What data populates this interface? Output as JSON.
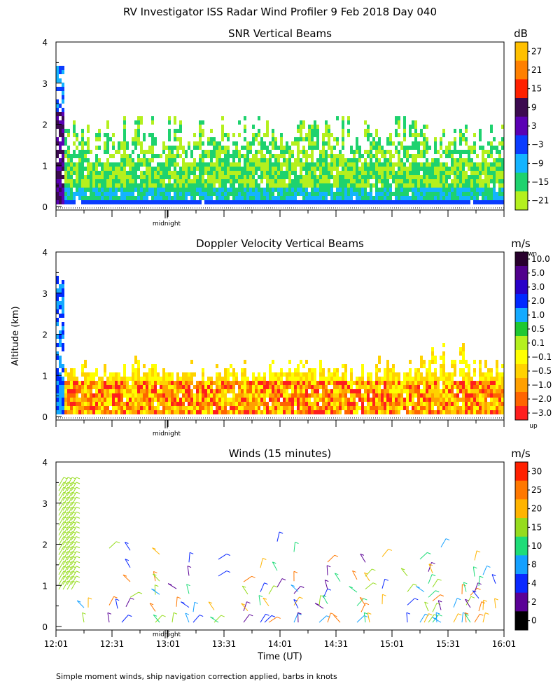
{
  "figure": {
    "title": "RV Investigator ISS Radar Wind Profiler   9 Feb 2018 Day 040",
    "ylabel": "Altitude (km)",
    "xlabel": "Time (UT)",
    "footer": "Simple moment winds, ship navigation correction applied, barbs in knots"
  },
  "chart_data": [
    {
      "type": "heatmap",
      "title": "SNR Vertical Beams",
      "colorbar_unit": "dB",
      "colorbar": {
        "ticks": [
          "27",
          "21",
          "15",
          "9",
          "3",
          "−3",
          "−9",
          "−15",
          "−21"
        ],
        "colors": [
          "#ffc000",
          "#ff8000",
          "#ff2000",
          "#3c0a50",
          "#5a00b4",
          "#0a3cff",
          "#14b4ff",
          "#1ed26e",
          "#b4f01e"
        ]
      },
      "y_ticks": [
        "0",
        "1",
        "2",
        "3",
        "4"
      ],
      "ylim": [
        0,
        4
      ],
      "xlim": [
        "12:01",
        "16:01"
      ],
      "midnight_label": "midnight",
      "grid": false
    },
    {
      "type": "heatmap",
      "title": "Doppler Velocity Vertical Beams",
      "colorbar_unit": "m/s",
      "colorbar_top_label": "down",
      "colorbar_bottom_label": "up",
      "colorbar": {
        "ticks": [
          "10.0",
          "5.0",
          "3.0",
          "2.0",
          "1.0",
          "0.5",
          "0.1",
          "−0.1",
          "−0.5",
          "−1.0",
          "−2.0",
          "−3.0"
        ],
        "colors": [
          "#28002d",
          "#50008c",
          "#2800c8",
          "#0028ff",
          "#14aaff",
          "#1ec832",
          "#b4f01e",
          "#ffff00",
          "#ffd200",
          "#ffa000",
          "#ff6400",
          "#ff1e1e"
        ]
      },
      "y_ticks": [
        "0",
        "1",
        "2",
        "3",
        "4"
      ],
      "ylim": [
        0,
        4
      ],
      "xlim": [
        "12:01",
        "16:01"
      ],
      "midnight_label": "midnight",
      "grid": false
    },
    {
      "type": "wind_barbs",
      "title": "Winds (15 minutes)",
      "colorbar_unit": "m/s",
      "colorbar": {
        "ticks": [
          "30",
          "25",
          "20",
          "15",
          "10",
          "8",
          "4",
          "2",
          "0"
        ],
        "colors": [
          "#ff2000",
          "#ff7800",
          "#ffb400",
          "#96dc1e",
          "#1edc78",
          "#14a0ff",
          "#0a28ff",
          "#5a0096",
          "#000000"
        ]
      },
      "y_ticks": [
        "0",
        "1",
        "2",
        "3",
        "4"
      ],
      "ylim": [
        0,
        4
      ],
      "x_ticks": [
        "12:01",
        "12:31",
        "13:01",
        "13:31",
        "14:01",
        "14:31",
        "15:01",
        "15:31",
        "16:01"
      ],
      "xlim": [
        "12:01",
        "16:01"
      ],
      "midnight_label": "midnight",
      "grid": false
    }
  ]
}
